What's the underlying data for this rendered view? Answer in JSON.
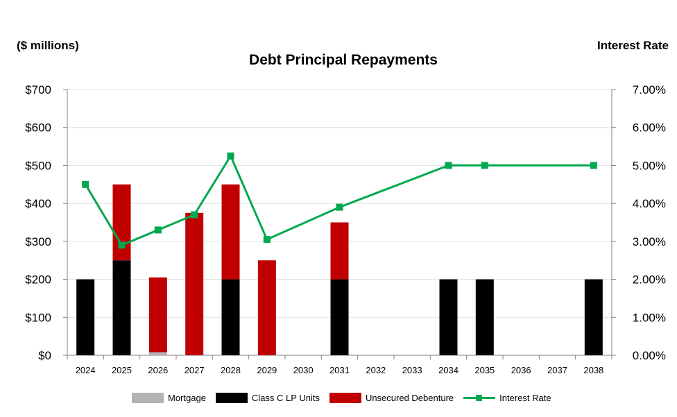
{
  "chart_data": {
    "type": "bar",
    "title": "Debt Principal Repayments",
    "ylabel": "($ millions)",
    "y2label": "Interest Rate",
    "categories": [
      "2024",
      "2025",
      "2026",
      "2027",
      "2028",
      "2029",
      "2030",
      "2031",
      "2032",
      "2033",
      "2034",
      "2035",
      "2036",
      "2037",
      "2038"
    ],
    "ylim": [
      0,
      700
    ],
    "y_ticks": [
      "$0",
      "$100",
      "$200",
      "$300",
      "$400",
      "$500",
      "$600",
      "$700"
    ],
    "y2lim": [
      0,
      7
    ],
    "y2_ticks": [
      "0.00%",
      "1.00%",
      "2.00%",
      "3.00%",
      "4.00%",
      "5.00%",
      "6.00%",
      "7.00%"
    ],
    "stacked": true,
    "grid": true,
    "legend_position": "bottom",
    "series": [
      {
        "name": "Mortgage",
        "color": "#b3b3b3",
        "values": [
          0,
          0,
          8,
          0,
          0,
          0,
          0,
          0,
          0,
          0,
          0,
          0,
          0,
          0,
          0
        ]
      },
      {
        "name": "Class C LP Units",
        "color": "#000000",
        "values": [
          200,
          250,
          0,
          0,
          200,
          0,
          0,
          200,
          0,
          0,
          200,
          200,
          0,
          0,
          200
        ]
      },
      {
        "name": "Unsecured Debenture",
        "color": "#c00000",
        "values": [
          0,
          200,
          197,
          375,
          250,
          250,
          0,
          150,
          0,
          0,
          0,
          0,
          0,
          0,
          0
        ]
      }
    ],
    "line_series": {
      "name": "Interest Rate",
      "color": "#00a84f",
      "axis": "right",
      "points": [
        {
          "x": "2024",
          "y": 4.5
        },
        {
          "x": "2025",
          "y": 2.9
        },
        {
          "x": "2026",
          "y": 3.3
        },
        {
          "x": "2027",
          "y": 3.7
        },
        {
          "x": "2028",
          "y": 5.25
        },
        {
          "x": "2029",
          "y": 3.05
        },
        {
          "x": "2031",
          "y": 3.9
        },
        {
          "x": "2034",
          "y": 5.0
        },
        {
          "x": "2035",
          "y": 5.0
        },
        {
          "x": "2038",
          "y": 5.0
        }
      ]
    }
  }
}
